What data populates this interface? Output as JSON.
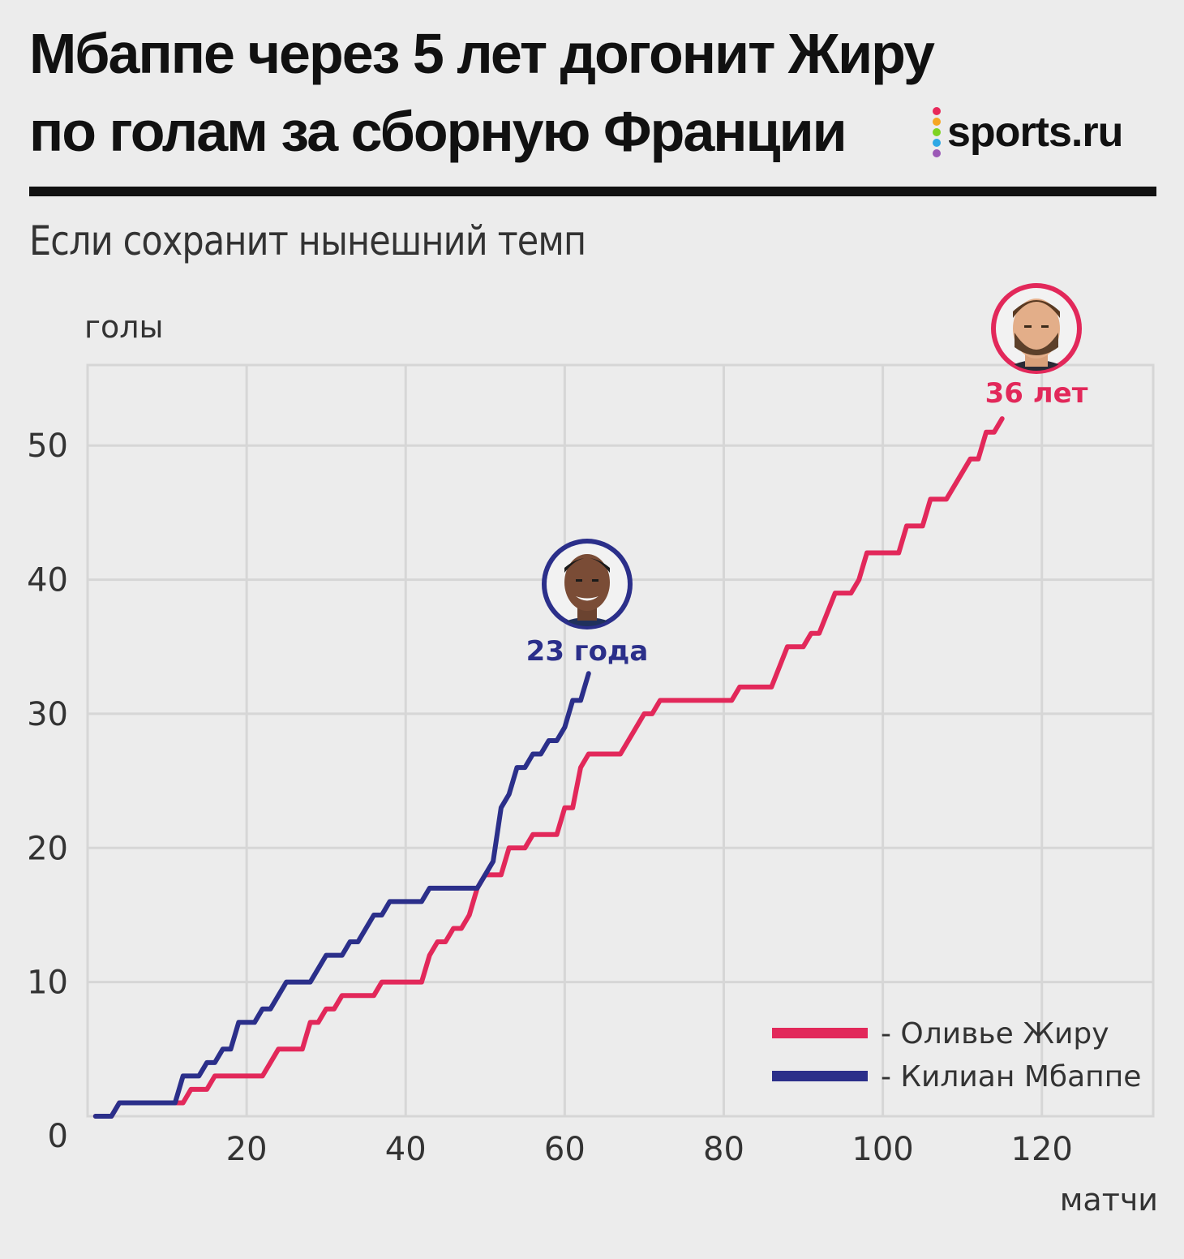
{
  "header": {
    "title": "Мбаппе через 5 лет догонит Жиру по голам за сборную Франции",
    "subtitle": "Если сохранит нынешний темп",
    "logo_text": "sports.ru",
    "logo_dot_colors": [
      "#e8285a",
      "#f5a623",
      "#7ed321",
      "#2ea8e5",
      "#9b59b6"
    ]
  },
  "chart_data": {
    "type": "line",
    "xlabel": "матчи",
    "ylabel": "голы",
    "xlim": [
      0,
      134
    ],
    "ylim": [
      0,
      56
    ],
    "x_ticks": [
      20,
      40,
      60,
      80,
      100,
      120
    ],
    "y_ticks": [
      0,
      10,
      20,
      30,
      40,
      50
    ],
    "grid": true,
    "legend_position": "bottom-right",
    "series": [
      {
        "name": "Оливье Жиру",
        "color": "#e2285a",
        "annotation": "36 лет",
        "icon": "giroud-portrait-icon",
        "points": [
          [
            1,
            0
          ],
          [
            3,
            0
          ],
          [
            4,
            1
          ],
          [
            11,
            1
          ],
          [
            12,
            1
          ],
          [
            13,
            2
          ],
          [
            15,
            2
          ],
          [
            16,
            3
          ],
          [
            21,
            3
          ],
          [
            22,
            3
          ],
          [
            23,
            4
          ],
          [
            24,
            5
          ],
          [
            27,
            5
          ],
          [
            28,
            7
          ],
          [
            29,
            7
          ],
          [
            30,
            8
          ],
          [
            31,
            8
          ],
          [
            32,
            9
          ],
          [
            36,
            9
          ],
          [
            37,
            10
          ],
          [
            42,
            10
          ],
          [
            43,
            12
          ],
          [
            44,
            13
          ],
          [
            45,
            13
          ],
          [
            46,
            14
          ],
          [
            47,
            14
          ],
          [
            48,
            15
          ],
          [
            49,
            17
          ],
          [
            50,
            18
          ],
          [
            52,
            18
          ],
          [
            53,
            20
          ],
          [
            55,
            20
          ],
          [
            56,
            21
          ],
          [
            59,
            21
          ],
          [
            60,
            23
          ],
          [
            61,
            23
          ],
          [
            62,
            26
          ],
          [
            63,
            27
          ],
          [
            67,
            27
          ],
          [
            70,
            30
          ],
          [
            71,
            30
          ],
          [
            72,
            31
          ],
          [
            81,
            31
          ],
          [
            82,
            32
          ],
          [
            86,
            32
          ],
          [
            88,
            35
          ],
          [
            90,
            35
          ],
          [
            91,
            36
          ],
          [
            92,
            36
          ],
          [
            94,
            39
          ],
          [
            96,
            39
          ],
          [
            97,
            40
          ],
          [
            98,
            42
          ],
          [
            102,
            42
          ],
          [
            103,
            44
          ],
          [
            105,
            44
          ],
          [
            106,
            46
          ],
          [
            108,
            46
          ],
          [
            111,
            49
          ],
          [
            112,
            49
          ],
          [
            113,
            51
          ],
          [
            114,
            51
          ],
          [
            115,
            52
          ]
        ]
      },
      {
        "name": "Килиан Мбаппе",
        "color": "#2b2f8a",
        "annotation": "23 года",
        "icon": "mbappe-portrait-icon",
        "points": [
          [
            1,
            0
          ],
          [
            3,
            0
          ],
          [
            4,
            1
          ],
          [
            11,
            1
          ],
          [
            12,
            3
          ],
          [
            14,
            3
          ],
          [
            15,
            4
          ],
          [
            16,
            4
          ],
          [
            17,
            5
          ],
          [
            18,
            5
          ],
          [
            19,
            7
          ],
          [
            21,
            7
          ],
          [
            22,
            8
          ],
          [
            23,
            8
          ],
          [
            25,
            10
          ],
          [
            28,
            10
          ],
          [
            30,
            12
          ],
          [
            32,
            12
          ],
          [
            33,
            13
          ],
          [
            34,
            13
          ],
          [
            36,
            15
          ],
          [
            37,
            15
          ],
          [
            38,
            16
          ],
          [
            42,
            16
          ],
          [
            43,
            17
          ],
          [
            49,
            17
          ],
          [
            51,
            19
          ],
          [
            52,
            23
          ],
          [
            53,
            24
          ],
          [
            54,
            26
          ],
          [
            55,
            26
          ],
          [
            56,
            27
          ],
          [
            57,
            27
          ],
          [
            58,
            28
          ],
          [
            59,
            28
          ],
          [
            60,
            29
          ],
          [
            61,
            31
          ],
          [
            62,
            31
          ],
          [
            63,
            33
          ]
        ]
      }
    ]
  }
}
